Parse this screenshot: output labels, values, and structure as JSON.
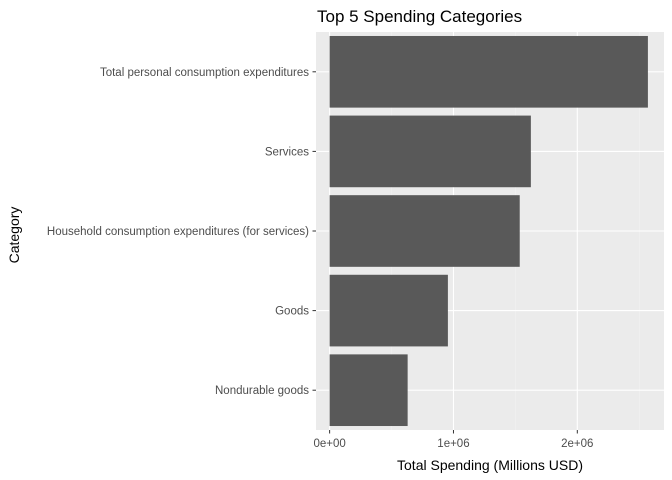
{
  "chart_data": {
    "type": "bar",
    "orientation": "horizontal",
    "title": "Top 5 Spending Categories",
    "xlabel": "Total Spending (Millions USD)",
    "ylabel": "Category",
    "categories": [
      "Total personal consumption expenditures",
      "Services",
      "Household consumption expenditures (for services)",
      "Goods",
      "Nondurable goods"
    ],
    "values": [
      2570000,
      1625000,
      1535000,
      955000,
      630000
    ],
    "xlim": [
      -110000,
      2700000
    ],
    "x_ticks": [
      0,
      1000000,
      2000000
    ],
    "x_tick_labels": [
      "0e+00",
      "1e+06",
      "2e+06"
    ],
    "grid": true,
    "legend": "none",
    "colors": {
      "bar": "#595959",
      "panel_background": "#ebebeb",
      "grid_major": "#ffffff",
      "grid_minor": "#f2f2f2",
      "tick_label": "#4d4d4d"
    }
  }
}
